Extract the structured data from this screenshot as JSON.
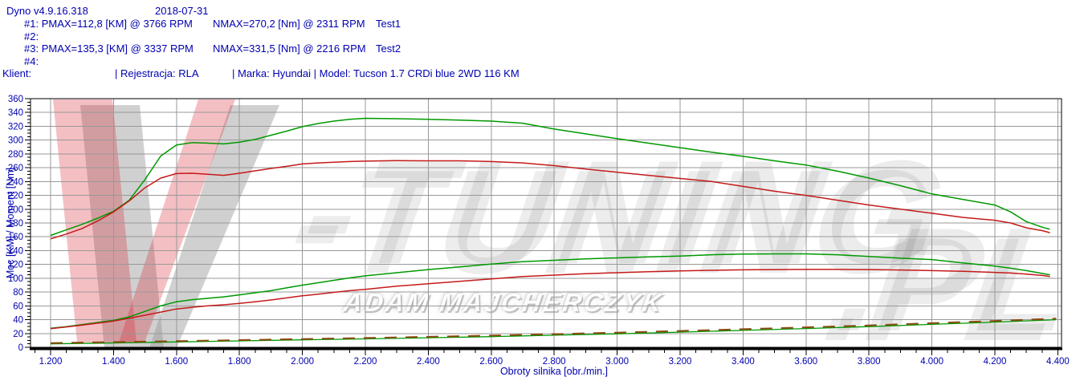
{
  "header": {
    "app_title": "Dyno v4.9.16.318",
    "date": "2018-07-31",
    "runs": [
      {
        "id": "#1:",
        "pmax": "PMAX=112,8 [KM] @ 3766 RPM",
        "nmax": "NMAX=270,2 [Nm] @ 2311 RPM",
        "test": "Test1"
      },
      {
        "id": "#2:",
        "pmax": "",
        "nmax": "",
        "test": ""
      },
      {
        "id": "#3:",
        "pmax": "PMAX=135,3 [KM] @ 3337 RPM",
        "nmax": "NMAX=331,5 [Nm] @ 2216 RPM",
        "test": "Test2"
      },
      {
        "id": "#4:",
        "pmax": "",
        "nmax": "",
        "test": ""
      }
    ],
    "client_label": "Klient:",
    "registration": "| Rejestracja: RLA",
    "make_model": "| Marka: Hyundai | Model: Tucson 1.7 CRDi blue 2WD 116 KM"
  },
  "watermark": {
    "brand_main": "-TUNING",
    "brand_pl": ".PL",
    "author": "ADAM MAJCHERCZYK"
  },
  "colors": {
    "text_blue": "#0000B0",
    "grid": "#999999",
    "axis": "#000000",
    "green": "#009900",
    "red": "#C41A1A",
    "loss_brown": "#8A4A10",
    "wm_red": "rgba(215,25,40,0.28)",
    "wm_gray": "rgba(150,150,150,0.45)"
  },
  "chart_data": {
    "type": "line",
    "title": "",
    "xlabel": "Obroty silnika [obr./min.]",
    "ylabel": "Moc [KM] / Moment [Nm]",
    "xlim": [
      1200,
      4400
    ],
    "ylim": [
      0,
      360
    ],
    "grid": true,
    "legend_position": "none",
    "x_minor_step": 50,
    "y_minor_step": 5,
    "xtick_values": [
      1200,
      1400,
      1600,
      1800,
      2000,
      2200,
      2400,
      2600,
      2800,
      3000,
      3200,
      3400,
      3600,
      3800,
      4000,
      4200,
      4400
    ],
    "xtick_labels": [
      "1.200",
      "1.400",
      "1.600",
      "1.800",
      "2.000",
      "2.200",
      "2.400",
      "2.600",
      "2.800",
      "3.000",
      "3.200",
      "3.400",
      "3.600",
      "3.800",
      "4.000",
      "4.200",
      "4.400"
    ],
    "ytick_values": [
      0,
      20,
      40,
      60,
      80,
      100,
      120,
      140,
      160,
      180,
      200,
      220,
      240,
      260,
      280,
      300,
      320,
      340,
      360
    ],
    "ytick_labels": [
      "0",
      "20",
      "40",
      "60",
      "80",
      "100",
      "120",
      "140",
      "160",
      "180",
      "200",
      "220",
      "240",
      "260",
      "280",
      "300",
      "320",
      "340",
      "360"
    ],
    "series": [
      {
        "name": "torque-test2-nm",
        "color": "#009900",
        "width": 1.5,
        "dash": "",
        "rpm": [
          1200,
          1250,
          1300,
          1350,
          1400,
          1450,
          1500,
          1550,
          1600,
          1650,
          1700,
          1750,
          1800,
          1850,
          1900,
          1950,
          2000,
          2050,
          2100,
          2150,
          2200,
          2300,
          2400,
          2500,
          2600,
          2700,
          2800,
          2900,
          3000,
          3100,
          3200,
          3300,
          3400,
          3500,
          3600,
          3700,
          3800,
          3900,
          4000,
          4100,
          4200,
          4250,
          4300,
          4350,
          4375
        ],
        "values": [
          162,
          170,
          178,
          187,
          197,
          213,
          243,
          277,
          293,
          296.5,
          295.5,
          294.5,
          297,
          301,
          307,
          313,
          319.5,
          324,
          327.5,
          330,
          331.5,
          331,
          330,
          329,
          327.5,
          324.5,
          316,
          309,
          302,
          295.5,
          289,
          282.5,
          276.5,
          270,
          264,
          255,
          245,
          234,
          222,
          214,
          206,
          196,
          182,
          174,
          171
        ]
      },
      {
        "name": "torque-test1-nm",
        "color": "#C41A1A",
        "width": 1.5,
        "dash": "",
        "rpm": [
          1200,
          1250,
          1300,
          1350,
          1400,
          1450,
          1500,
          1550,
          1600,
          1650,
          1700,
          1750,
          1800,
          1850,
          1900,
          1950,
          2000,
          2050,
          2100,
          2150,
          2200,
          2300,
          2400,
          2500,
          2600,
          2700,
          2800,
          2900,
          3000,
          3100,
          3200,
          3300,
          3400,
          3500,
          3600,
          3700,
          3800,
          3900,
          4000,
          4100,
          4200,
          4250,
          4300,
          4350,
          4375
        ],
        "values": [
          157,
          164,
          172,
          183,
          196,
          212,
          231,
          245,
          251.5,
          252,
          250.5,
          249,
          252,
          255.5,
          259,
          262,
          265.5,
          267,
          268,
          269,
          269.5,
          270.2,
          270,
          270,
          269,
          267,
          263,
          258,
          253.5,
          249,
          244.5,
          240,
          233,
          226,
          220,
          213,
          206,
          200,
          194,
          188,
          184,
          180,
          173,
          169,
          166
        ]
      },
      {
        "name": "power-test2-km",
        "color": "#009900",
        "width": 1.5,
        "dash": "",
        "rpm": [
          1200,
          1250,
          1300,
          1350,
          1400,
          1450,
          1500,
          1550,
          1600,
          1650,
          1700,
          1750,
          1800,
          1850,
          1900,
          1950,
          2000,
          2050,
          2100,
          2150,
          2200,
          2300,
          2400,
          2500,
          2600,
          2700,
          2800,
          2900,
          3000,
          3100,
          3200,
          3300,
          3400,
          3500,
          3600,
          3700,
          3800,
          3900,
          4000,
          4100,
          4200,
          4250,
          4300,
          4350,
          4375
        ],
        "values": [
          27.5,
          30,
          33,
          36,
          39,
          44,
          52,
          60,
          66,
          69,
          71,
          73,
          76,
          79,
          82,
          86,
          90,
          93.5,
          97,
          100.5,
          103.5,
          108,
          112.5,
          116.5,
          120.5,
          124,
          126,
          128,
          129.5,
          131,
          132,
          134,
          135,
          135.3,
          135.3,
          134,
          131.5,
          129,
          127,
          122,
          117.5,
          114.5,
          111,
          107,
          105
        ]
      },
      {
        "name": "power-test1-km",
        "color": "#C41A1A",
        "width": 1.5,
        "dash": "",
        "rpm": [
          1200,
          1250,
          1300,
          1350,
          1400,
          1450,
          1500,
          1550,
          1600,
          1650,
          1700,
          1750,
          1800,
          1850,
          1900,
          1950,
          2000,
          2050,
          2100,
          2150,
          2200,
          2300,
          2400,
          2500,
          2600,
          2700,
          2800,
          2900,
          3000,
          3100,
          3200,
          3300,
          3400,
          3500,
          3600,
          3700,
          3800,
          3900,
          4000,
          4100,
          4200,
          4250,
          4300,
          4350,
          4375
        ],
        "values": [
          27,
          29.5,
          32,
          35,
          38,
          42,
          46.5,
          51,
          55.5,
          58,
          60,
          61.5,
          63.5,
          66,
          68.5,
          71.5,
          74.5,
          77,
          79.5,
          82,
          84,
          88.5,
          92,
          95.5,
          99,
          102.5,
          104.5,
          106.5,
          108,
          109.5,
          110.5,
          111.5,
          112.2,
          112.5,
          112.8,
          112.8,
          112.5,
          112,
          111,
          110,
          108.5,
          107.5,
          106,
          104,
          102.5
        ]
      },
      {
        "name": "loss-test2",
        "color": "#009900",
        "width": 1.3,
        "dash": "",
        "rpm": [
          1200,
          1400,
          1600,
          1800,
          2000,
          2200,
          2400,
          2600,
          2800,
          3000,
          3200,
          3400,
          3600,
          3800,
          4000,
          4200,
          4395
        ],
        "values": [
          5,
          6.3,
          7.8,
          9.3,
          10.8,
          12.2,
          13.8,
          15.5,
          17.5,
          19.5,
          22,
          24.5,
          27.2,
          30,
          33.2,
          36.5,
          40
        ]
      },
      {
        "name": "loss-test1",
        "color": "#8A4A10",
        "width": 2,
        "dash": "15 11",
        "rpm": [
          1200,
          1400,
          1600,
          1800,
          2000,
          2200,
          2400,
          2600,
          2800,
          3000,
          3200,
          3400,
          3600,
          3800,
          4000,
          4200,
          4395
        ],
        "values": [
          6.2,
          7.5,
          9,
          10.5,
          12,
          13.5,
          15.2,
          17,
          19,
          21.2,
          23.7,
          26.2,
          28.9,
          31.7,
          34.9,
          38.2,
          41.5
        ]
      }
    ]
  }
}
